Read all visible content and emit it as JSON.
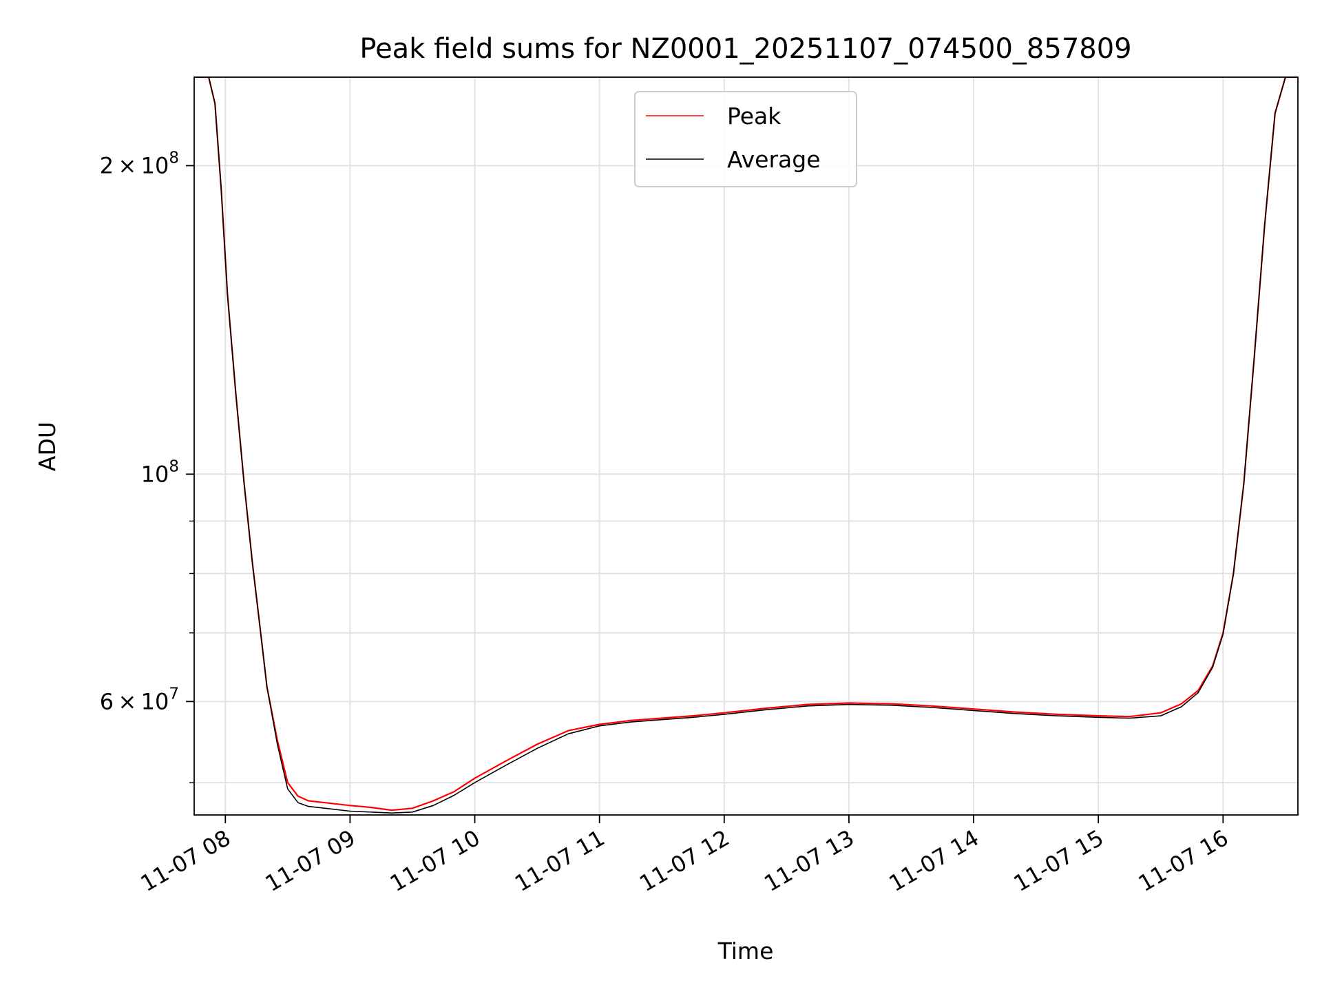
{
  "chart_data": {
    "type": "line",
    "title": "Peak field sums for NZ0001_20251107_074500_857809",
    "xlabel": "Time",
    "ylabel": "ADU",
    "x_scale": "time",
    "y_scale": "log",
    "xlim": [
      "2025-11-07T07:45",
      "2025-11-07T16:36"
    ],
    "ylim": [
      46500000,
      244000000
    ],
    "grid": true,
    "legend_position": "top-center",
    "x_ticks": [
      {
        "value": "2025-11-07T08:00",
        "label": "11-07 08"
      },
      {
        "value": "2025-11-07T09:00",
        "label": "11-07 09"
      },
      {
        "value": "2025-11-07T10:00",
        "label": "11-07 10"
      },
      {
        "value": "2025-11-07T11:00",
        "label": "11-07 11"
      },
      {
        "value": "2025-11-07T12:00",
        "label": "11-07 12"
      },
      {
        "value": "2025-11-07T13:00",
        "label": "11-07 13"
      },
      {
        "value": "2025-11-07T14:00",
        "label": "11-07 14"
      },
      {
        "value": "2025-11-07T15:00",
        "label": "11-07 15"
      },
      {
        "value": "2025-11-07T16:00",
        "label": "11-07 16"
      }
    ],
    "y_ticks": [
      {
        "value": 60000000,
        "mantissa": "6",
        "times": "×",
        "base": "10",
        "exp": "7"
      },
      {
        "value": 100000000,
        "mantissa": "",
        "times": "",
        "base": "10",
        "exp": "8"
      },
      {
        "value": 200000000,
        "mantissa": "2",
        "times": "×",
        "base": "10",
        "exp": "8"
      }
    ],
    "y_minor_ticks": [
      50000000,
      70000000,
      80000000,
      90000000
    ],
    "x": [
      "2025-11-07T07:45",
      "2025-11-07T07:52",
      "2025-11-07T07:55",
      "2025-11-07T07:58",
      "2025-11-07T08:01",
      "2025-11-07T08:05",
      "2025-11-07T08:09",
      "2025-11-07T08:13",
      "2025-11-07T08:17",
      "2025-11-07T08:20",
      "2025-11-07T08:25",
      "2025-11-07T08:30",
      "2025-11-07T08:35",
      "2025-11-07T08:40",
      "2025-11-07T08:48",
      "2025-11-07T09:00",
      "2025-11-07T09:10",
      "2025-11-07T09:20",
      "2025-11-07T09:30",
      "2025-11-07T09:40",
      "2025-11-07T09:50",
      "2025-11-07T10:00",
      "2025-11-07T10:15",
      "2025-11-07T10:30",
      "2025-11-07T10:45",
      "2025-11-07T11:00",
      "2025-11-07T11:15",
      "2025-11-07T11:30",
      "2025-11-07T11:45",
      "2025-11-07T12:00",
      "2025-11-07T12:20",
      "2025-11-07T12:40",
      "2025-11-07T13:00",
      "2025-11-07T13:20",
      "2025-11-07T13:40",
      "2025-11-07T14:00",
      "2025-11-07T14:20",
      "2025-11-07T14:40",
      "2025-11-07T15:00",
      "2025-11-07T15:15",
      "2025-11-07T15:30",
      "2025-11-07T15:40",
      "2025-11-07T15:48",
      "2025-11-07T15:55",
      "2025-11-07T16:00",
      "2025-11-07T16:05",
      "2025-11-07T16:10",
      "2025-11-07T16:15",
      "2025-11-07T16:20",
      "2025-11-07T16:25",
      "2025-11-07T16:30",
      "2025-11-07T16:36"
    ],
    "series": [
      {
        "name": "Peak",
        "color": "#ff0000",
        "values": [
          244000000,
          244000000,
          230000000,
          190000000,
          150000000,
          120000000,
          98000000,
          82000000,
          70000000,
          62000000,
          55000000,
          50000000,
          48500000,
          48000000,
          47800000,
          47500000,
          47300000,
          47000000,
          47200000,
          48000000,
          49000000,
          50500000,
          52500000,
          54500000,
          56200000,
          57000000,
          57500000,
          57800000,
          58100000,
          58500000,
          59100000,
          59600000,
          59800000,
          59700000,
          59400000,
          59000000,
          58600000,
          58300000,
          58100000,
          58000000,
          58500000,
          59700000,
          61500000,
          65000000,
          70000000,
          80000000,
          98000000,
          130000000,
          175000000,
          225000000,
          244000000,
          244000000
        ]
      },
      {
        "name": "Average",
        "color": "#000000",
        "values": [
          244000000,
          244000000,
          230000000,
          190000000,
          150000000,
          120000000,
          98000000,
          82000000,
          70000000,
          62000000,
          54500000,
          49300000,
          47800000,
          47400000,
          47200000,
          46900000,
          46800000,
          46700000,
          46800000,
          47500000,
          48600000,
          50000000,
          52000000,
          54000000,
          55800000,
          56800000,
          57300000,
          57600000,
          57900000,
          58300000,
          58900000,
          59400000,
          59600000,
          59500000,
          59200000,
          58800000,
          58400000,
          58100000,
          57900000,
          57800000,
          58100000,
          59300000,
          61200000,
          64800000,
          69800000,
          80000000,
          98000000,
          130000000,
          175000000,
          225000000,
          244000000,
          244000000
        ]
      }
    ]
  }
}
